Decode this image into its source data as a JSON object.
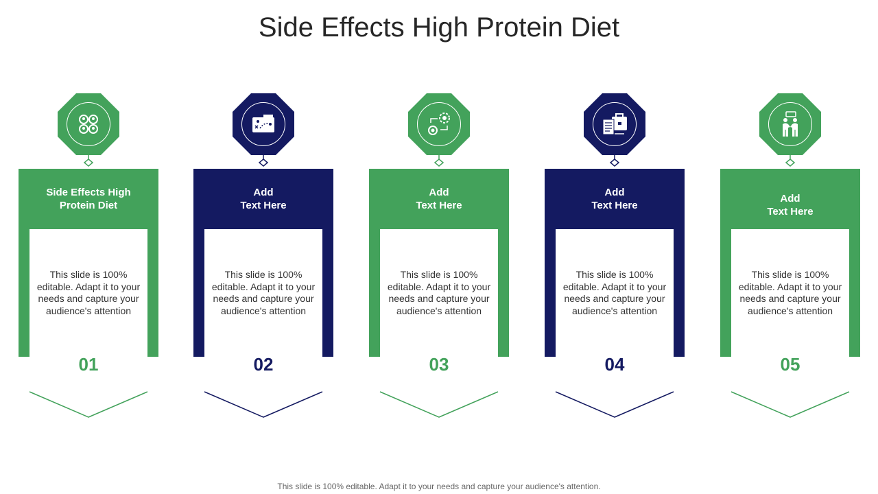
{
  "title": "Side Effects High Protein Diet",
  "colors": {
    "green": "#43a25b",
    "navy": "#141a61"
  },
  "cards": [
    {
      "number": "01",
      "heading": "Side Effects High\nProtein Diet",
      "body": "This slide is 100% editable. Adapt it to your needs and capture your audience's attention",
      "color": "green",
      "icon": "network-people-icon"
    },
    {
      "number": "02",
      "heading": "Add\nText Here",
      "body": "This slide is 100% editable. Adapt it to your needs and capture your audience's attention",
      "color": "navy",
      "icon": "strategy-map-icon"
    },
    {
      "number": "03",
      "heading": "Add\nText Here",
      "body": "This slide is 100% editable. Adapt it to your needs and capture your audience's attention",
      "color": "green",
      "icon": "process-gear-icon"
    },
    {
      "number": "04",
      "heading": "Add\nText Here",
      "body": "This slide is 100% editable. Adapt it to your needs and capture your audience's attention",
      "color": "navy",
      "icon": "briefcase-document-icon"
    },
    {
      "number": "05",
      "heading": "Add\nText Here",
      "body": "This slide is 100% editable. Adapt it to your needs and capture your audience's attention",
      "color": "green",
      "icon": "people-discussion-icon"
    }
  ],
  "footer": "This slide is 100% editable. Adapt it to your needs and capture your audience's attention."
}
